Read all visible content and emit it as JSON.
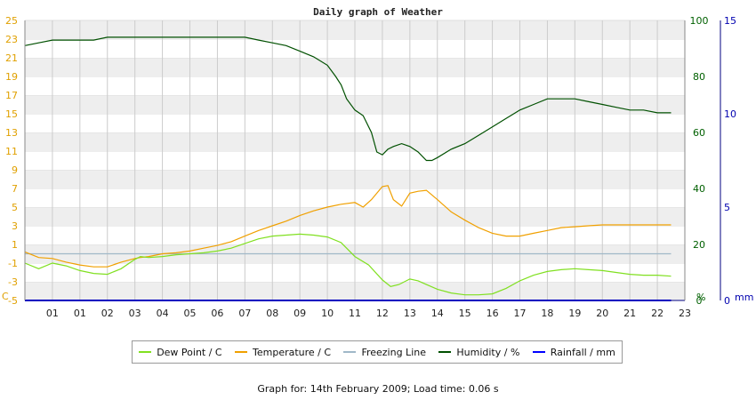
{
  "chart_data": {
    "type": "line",
    "title": "Daily graph of Weather",
    "footer": "Graph for: 14th February 2009; Load time: 0.06 s",
    "x_labels": [
      "01",
      "01",
      "02",
      "03",
      "04",
      "05",
      "06",
      "07",
      "08",
      "09",
      "10",
      "11",
      "12",
      "13",
      "14",
      "15",
      "16",
      "17",
      "18",
      "19",
      "20",
      "21",
      "22",
      "23"
    ],
    "axes": {
      "left": {
        "unit": "C",
        "ylim": [
          -5,
          25
        ],
        "ticks": [
          25,
          23,
          21,
          19,
          17,
          15,
          13,
          11,
          9,
          7,
          5,
          3,
          1,
          -1,
          -3,
          -5
        ]
      },
      "humidity": {
        "unit": "%",
        "ylim": [
          0,
          100
        ],
        "ticks": [
          100,
          80,
          60,
          40,
          20,
          0
        ]
      },
      "rainfall": {
        "unit": "mm",
        "ylim": [
          0,
          15
        ],
        "ticks": [
          15,
          10,
          5,
          0
        ]
      }
    },
    "grid": true,
    "legend_position": "bottom",
    "series": [
      {
        "name": "Dew Point / C",
        "axis": "left",
        "color": "#80e020",
        "x": [
          0,
          0.5,
          1,
          1.5,
          2,
          2.5,
          3,
          3.5,
          4,
          4.2,
          4.5,
          5,
          5.5,
          6,
          6.5,
          7,
          7.5,
          8,
          8.5,
          9,
          9.5,
          10,
          10.5,
          11,
          11.5,
          12,
          12.5,
          13,
          13.3,
          13.6,
          14,
          14.3,
          14.6,
          15,
          15.5,
          16,
          16.5,
          17,
          17.5,
          18,
          18.5,
          19,
          19.5,
          20,
          20.5,
          21,
          21.5,
          22,
          22.5,
          23,
          23.5
        ],
        "y": [
          -1.0,
          -1.6,
          -1.0,
          -1.3,
          -1.8,
          -2.1,
          -2.2,
          -1.6,
          -0.6,
          -0.3,
          -0.4,
          -0.3,
          -0.1,
          0.0,
          0.1,
          0.3,
          0.6,
          1.1,
          1.6,
          1.9,
          2.0,
          2.1,
          2.0,
          1.8,
          1.2,
          -0.3,
          -1.2,
          -2.8,
          -3.5,
          -3.3,
          -2.7,
          -2.9,
          -3.3,
          -3.8,
          -4.2,
          -4.4,
          -4.4,
          -4.3,
          -3.7,
          -2.9,
          -2.3,
          -1.9,
          -1.7,
          -1.6,
          -1.7,
          -1.8,
          -2.0,
          -2.2,
          -2.3,
          -2.3,
          -2.4
        ]
      },
      {
        "name": "Temperature / C",
        "axis": "left",
        "color": "#f0a000",
        "x": [
          0,
          0.5,
          1,
          1.5,
          2,
          2.5,
          3,
          3.5,
          4,
          4.2,
          4.5,
          5,
          5.5,
          6,
          6.5,
          7,
          7.5,
          8,
          8.5,
          9,
          9.5,
          10,
          10.5,
          11,
          11.5,
          12,
          12.3,
          12.6,
          13,
          13.2,
          13.4,
          13.7,
          14,
          14.3,
          14.6,
          15,
          15.5,
          16,
          16.5,
          17,
          17.5,
          18,
          18.5,
          19,
          19.5,
          20,
          20.5,
          21,
          21.5,
          22,
          22.5,
          23,
          23.5
        ],
        "y": [
          0.2,
          -0.4,
          -0.5,
          -0.9,
          -1.2,
          -1.4,
          -1.4,
          -0.9,
          -0.5,
          -0.4,
          -0.3,
          0.0,
          0.1,
          0.3,
          0.6,
          0.9,
          1.3,
          1.9,
          2.5,
          3.0,
          3.5,
          4.1,
          4.6,
          5.0,
          5.3,
          5.5,
          5.0,
          5.8,
          7.2,
          7.3,
          5.8,
          5.1,
          6.5,
          6.7,
          6.8,
          5.8,
          4.5,
          3.6,
          2.8,
          2.2,
          1.9,
          1.9,
          2.2,
          2.5,
          2.8,
          2.9,
          3.0,
          3.1,
          3.1,
          3.1,
          3.1,
          3.1,
          3.1
        ]
      },
      {
        "name": "Freezing Line",
        "axis": "left",
        "color": "#a0b8c8",
        "x": [
          0,
          23.5
        ],
        "y": [
          0,
          0
        ]
      },
      {
        "name": "Humidity / %",
        "axis": "humidity",
        "color": "#005000",
        "x": [
          0,
          0.5,
          1,
          1.5,
          2,
          2.5,
          3,
          3.5,
          4,
          4.5,
          5,
          5.5,
          6,
          6.5,
          7,
          7.5,
          8,
          8.5,
          9,
          9.5,
          10,
          10.5,
          11,
          11.3,
          11.5,
          11.7,
          12,
          12.3,
          12.6,
          12.8,
          13,
          13.2,
          13.4,
          13.7,
          14,
          14.3,
          14.6,
          14.8,
          15,
          15.5,
          16,
          16.5,
          17,
          17.5,
          18,
          18.5,
          19,
          19.5,
          20,
          20.5,
          21,
          21.5,
          22,
          22.5,
          23,
          23.5
        ],
        "y": [
          91,
          92,
          93,
          93,
          93,
          93,
          94,
          94,
          94,
          94,
          94,
          94,
          94,
          94,
          94,
          94,
          94,
          93,
          92,
          91,
          89,
          87,
          84,
          80,
          77,
          72,
          68,
          66,
          60,
          53,
          52,
          54,
          55,
          56,
          55,
          53,
          50,
          50,
          51,
          54,
          56,
          59,
          62,
          65,
          68,
          70,
          72,
          72,
          72,
          71,
          70,
          69,
          68,
          68,
          67,
          67
        ]
      },
      {
        "name": "Rainfall / mm",
        "axis": "rainfall",
        "color": "#0000ff",
        "x": [
          0,
          23.5
        ],
        "y": [
          0,
          0
        ]
      }
    ]
  }
}
